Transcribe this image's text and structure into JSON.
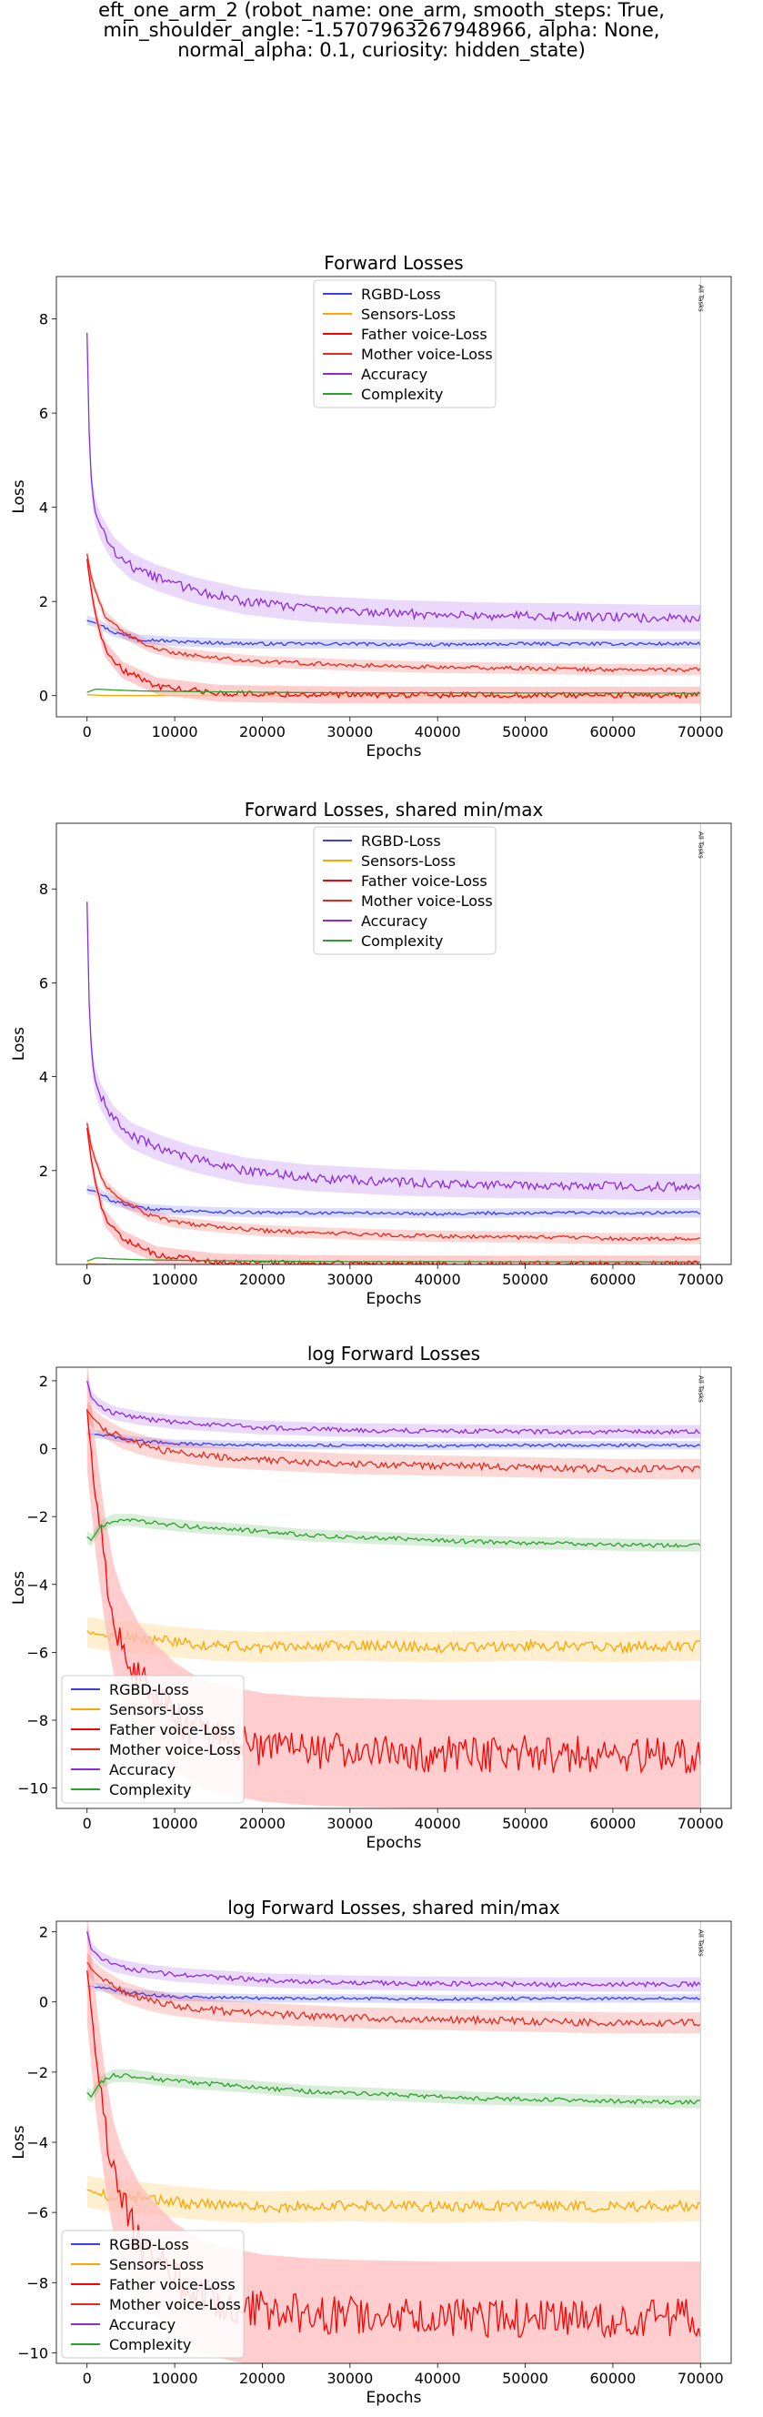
{
  "suptitle": {
    "line1": "eft_one_arm_2 (robot_name: one_arm, smooth_steps: True,",
    "line2": "min_shoulder_angle: -1.5707963267948966, alpha: None,",
    "line3": "normal_alpha: 0.1, curiosity: hidden_state)"
  },
  "colors": {
    "RGBD-Loss": "#3b3bf0",
    "Sensors-Loss": "#ffa500",
    "Father voice-Loss": "#ff0000",
    "Mother voice-Loss": "#e8281e",
    "Accuracy": "#8a2be2",
    "Complexity": "#2ca02c",
    "father_band": "#ffbcbc"
  },
  "chart_data": [
    {
      "type": "line",
      "title": "Forward Losses",
      "xlabel": "Epochs",
      "ylabel": "Loss",
      "xlim": [
        -3500,
        73500
      ],
      "ylim": [
        -0.45,
        8.9
      ],
      "xticks": [
        0,
        10000,
        20000,
        30000,
        40000,
        50000,
        60000,
        70000
      ],
      "yticks": [
        0,
        2,
        4,
        6,
        8
      ],
      "vline": {
        "x": 70000,
        "label": "All Tasks"
      },
      "legend_position": "upper center",
      "series": [
        {
          "name": "RGBD-Loss",
          "x": [
            0,
            1000,
            3000,
            6000,
            10000,
            15000,
            20000,
            30000,
            40000,
            50000,
            60000,
            70000
          ],
          "y": [
            1.6,
            1.55,
            1.35,
            1.2,
            1.15,
            1.12,
            1.1,
            1.1,
            1.08,
            1.1,
            1.1,
            1.1
          ]
        },
        {
          "name": "Sensors-Loss",
          "x": [
            0,
            1000,
            2000,
            5000,
            10000,
            20000,
            30000,
            40000,
            50000,
            60000,
            70000
          ],
          "y": [
            0.02,
            0.01,
            0.005,
            0.003,
            0.003,
            0.003,
            0.003,
            0.003,
            0.003,
            0.003,
            0.003
          ]
        },
        {
          "name": "Father voice-Loss",
          "x": [
            0,
            500,
            1000,
            2000,
            4000,
            8000,
            15000,
            25000,
            35000,
            45000,
            55000,
            65000,
            70000
          ],
          "y": [
            2.9,
            2.2,
            1.7,
            1.0,
            0.55,
            0.2,
            0.05,
            0.02,
            0.01,
            0.01,
            0.01,
            0.01,
            0.01
          ]
        },
        {
          "name": "Mother voice-Loss",
          "x": [
            0,
            500,
            1000,
            2000,
            4000,
            7000,
            10000,
            15000,
            20000,
            30000,
            40000,
            50000,
            60000,
            70000
          ],
          "y": [
            3.0,
            2.5,
            2.2,
            1.7,
            1.35,
            1.05,
            0.9,
            0.8,
            0.72,
            0.65,
            0.6,
            0.58,
            0.55,
            0.55
          ]
        },
        {
          "name": "Accuracy",
          "x": [
            0,
            300,
            800,
            1500,
            3000,
            5000,
            8000,
            12000,
            18000,
            25000,
            35000,
            45000,
            55000,
            65000,
            70000
          ],
          "y": [
            7.7,
            5.0,
            4.0,
            3.6,
            3.1,
            2.75,
            2.5,
            2.25,
            2.0,
            1.85,
            1.75,
            1.7,
            1.68,
            1.65,
            1.65
          ]
        },
        {
          "name": "Complexity",
          "x": [
            0,
            1000,
            3000,
            6000,
            10000,
            20000,
            30000,
            40000,
            50000,
            60000,
            70000
          ],
          "y": [
            0.07,
            0.14,
            0.12,
            0.1,
            0.09,
            0.07,
            0.06,
            0.06,
            0.055,
            0.055,
            0.05
          ]
        }
      ]
    },
    {
      "type": "line",
      "title": "Forward Losses, shared min/max",
      "xlabel": "Epochs",
      "ylabel": "Loss",
      "xlim": [
        -3500,
        73500
      ],
      "ylim": [
        0.0,
        9.4
      ],
      "xticks": [
        0,
        10000,
        20000,
        30000,
        40000,
        50000,
        60000,
        70000
      ],
      "yticks": [
        2,
        4,
        6,
        8
      ],
      "vline": {
        "x": 70000,
        "label": "All Tasks"
      },
      "legend_position": "upper center",
      "series": [
        {
          "name": "RGBD-Loss",
          "x": [
            0,
            1000,
            3000,
            6000,
            10000,
            15000,
            20000,
            30000,
            40000,
            50000,
            60000,
            70000
          ],
          "y": [
            1.6,
            1.55,
            1.35,
            1.2,
            1.15,
            1.12,
            1.1,
            1.1,
            1.08,
            1.1,
            1.1,
            1.1
          ]
        },
        {
          "name": "Sensors-Loss",
          "x": [
            0,
            1000,
            2000,
            5000,
            10000,
            20000,
            30000,
            40000,
            50000,
            60000,
            70000
          ],
          "y": [
            0.02,
            0.01,
            0.005,
            0.003,
            0.003,
            0.003,
            0.003,
            0.003,
            0.003,
            0.003,
            0.003
          ]
        },
        {
          "name": "Father voice-Loss",
          "x": [
            0,
            500,
            1000,
            2000,
            4000,
            8000,
            15000,
            25000,
            35000,
            45000,
            55000,
            65000,
            70000
          ],
          "y": [
            2.9,
            2.2,
            1.7,
            1.0,
            0.55,
            0.2,
            0.05,
            0.02,
            0.01,
            0.01,
            0.01,
            0.01,
            0.01
          ]
        },
        {
          "name": "Mother voice-Loss",
          "x": [
            0,
            500,
            1000,
            2000,
            4000,
            7000,
            10000,
            15000,
            20000,
            30000,
            40000,
            50000,
            60000,
            70000
          ],
          "y": [
            3.0,
            2.5,
            2.2,
            1.7,
            1.35,
            1.05,
            0.9,
            0.8,
            0.72,
            0.65,
            0.6,
            0.58,
            0.55,
            0.55
          ]
        },
        {
          "name": "Accuracy",
          "x": [
            0,
            300,
            800,
            1500,
            3000,
            5000,
            8000,
            12000,
            18000,
            25000,
            35000,
            45000,
            55000,
            65000,
            70000
          ],
          "y": [
            7.7,
            5.0,
            4.0,
            3.6,
            3.1,
            2.75,
            2.5,
            2.25,
            2.0,
            1.85,
            1.75,
            1.7,
            1.68,
            1.65,
            1.65
          ]
        },
        {
          "name": "Complexity",
          "x": [
            0,
            1000,
            3000,
            6000,
            10000,
            20000,
            30000,
            40000,
            50000,
            60000,
            70000
          ],
          "y": [
            0.07,
            0.14,
            0.12,
            0.1,
            0.09,
            0.07,
            0.06,
            0.06,
            0.055,
            0.055,
            0.05
          ]
        }
      ]
    },
    {
      "type": "line",
      "title": "log Forward Losses",
      "xlabel": "Epochs",
      "ylabel": "Loss",
      "xlim": [
        -3500,
        73500
      ],
      "ylim": [
        -10.6,
        2.4
      ],
      "xticks": [
        0,
        10000,
        20000,
        30000,
        40000,
        50000,
        60000,
        70000
      ],
      "yticks": [
        -10,
        -8,
        -6,
        -4,
        -2,
        0,
        2
      ],
      "vline": {
        "x": 70000,
        "label": "All Tasks"
      },
      "legend_position": "lower left",
      "series": [
        {
          "name": "RGBD-Loss",
          "x": [
            0,
            2000,
            5000,
            10000,
            20000,
            30000,
            40000,
            50000,
            60000,
            70000
          ],
          "y": [
            0.45,
            0.4,
            0.25,
            0.15,
            0.1,
            0.1,
            0.08,
            0.1,
            0.1,
            0.1
          ]
        },
        {
          "name": "Sensors-Loss",
          "x": [
            0,
            2000,
            5000,
            10000,
            15000,
            20000,
            30000,
            40000,
            50000,
            60000,
            70000
          ],
          "y": [
            -5.4,
            -5.5,
            -5.55,
            -5.7,
            -5.8,
            -5.85,
            -5.8,
            -5.85,
            -5.8,
            -5.85,
            -5.8
          ]
        },
        {
          "name": "Father voice-Loss",
          "x": [
            0,
            1000,
            2000,
            3000,
            4000,
            6000,
            8000,
            10000,
            13000,
            16000,
            20000,
            25000,
            30000,
            40000,
            50000,
            60000,
            70000
          ],
          "y": [
            1.0,
            -1.5,
            -3.5,
            -5.0,
            -5.8,
            -6.8,
            -7.4,
            -7.9,
            -8.4,
            -8.6,
            -8.8,
            -8.9,
            -8.95,
            -9.0,
            -9.0,
            -9.0,
            -9.0
          ]
        },
        {
          "name": "Mother voice-Loss",
          "x": [
            0,
            1000,
            2000,
            4000,
            7000,
            10000,
            15000,
            20000,
            30000,
            40000,
            50000,
            60000,
            70000
          ],
          "y": [
            1.1,
            0.8,
            0.6,
            0.3,
            0.05,
            -0.1,
            -0.25,
            -0.33,
            -0.45,
            -0.5,
            -0.55,
            -0.6,
            -0.6
          ]
        },
        {
          "name": "Accuracy",
          "x": [
            0,
            500,
            1500,
            3000,
            6000,
            10000,
            15000,
            20000,
            30000,
            40000,
            50000,
            60000,
            70000
          ],
          "y": [
            2.0,
            1.5,
            1.25,
            1.05,
            0.9,
            0.78,
            0.7,
            0.62,
            0.55,
            0.52,
            0.5,
            0.5,
            0.5
          ]
        },
        {
          "name": "Complexity",
          "x": [
            0,
            500,
            1500,
            3000,
            5000,
            8000,
            12000,
            18000,
            25000,
            35000,
            45000,
            55000,
            65000,
            70000
          ],
          "y": [
            -2.6,
            -2.7,
            -2.3,
            -2.1,
            -2.1,
            -2.2,
            -2.3,
            -2.4,
            -2.55,
            -2.65,
            -2.75,
            -2.8,
            -2.85,
            -2.85
          ]
        }
      ]
    },
    {
      "type": "line",
      "title": "log Forward Losses, shared min/max",
      "xlabel": "Epochs",
      "ylabel": "Loss",
      "xlim": [
        -3500,
        73500
      ],
      "ylim": [
        -10.3,
        2.3
      ],
      "xticks": [
        0,
        10000,
        20000,
        30000,
        40000,
        50000,
        60000,
        70000
      ],
      "yticks": [
        -10,
        -8,
        -6,
        -4,
        -2,
        0,
        2
      ],
      "vline": {
        "x": 70000,
        "label": "All Tasks"
      },
      "legend_position": "lower left",
      "series": [
        {
          "name": "RGBD-Loss",
          "x": [
            0,
            2000,
            5000,
            10000,
            20000,
            30000,
            40000,
            50000,
            60000,
            70000
          ],
          "y": [
            0.45,
            0.4,
            0.25,
            0.15,
            0.1,
            0.1,
            0.08,
            0.1,
            0.1,
            0.1
          ]
        },
        {
          "name": "Sensors-Loss",
          "x": [
            0,
            2000,
            5000,
            10000,
            15000,
            20000,
            30000,
            40000,
            50000,
            60000,
            70000
          ],
          "y": [
            -5.4,
            -5.5,
            -5.55,
            -5.7,
            -5.8,
            -5.85,
            -5.8,
            -5.85,
            -5.8,
            -5.85,
            -5.8
          ]
        },
        {
          "name": "Father voice-Loss",
          "x": [
            0,
            1000,
            2000,
            3000,
            4000,
            6000,
            8000,
            10000,
            13000,
            16000,
            20000,
            25000,
            30000,
            40000,
            50000,
            60000,
            70000
          ],
          "y": [
            1.0,
            -1.5,
            -3.5,
            -5.0,
            -5.8,
            -6.8,
            -7.4,
            -7.9,
            -8.4,
            -8.6,
            -8.8,
            -8.9,
            -8.95,
            -9.0,
            -9.0,
            -9.0,
            -9.0
          ]
        },
        {
          "name": "Mother voice-Loss",
          "x": [
            0,
            1000,
            2000,
            4000,
            7000,
            10000,
            15000,
            20000,
            30000,
            40000,
            50000,
            60000,
            70000
          ],
          "y": [
            1.1,
            0.8,
            0.6,
            0.3,
            0.05,
            -0.1,
            -0.25,
            -0.33,
            -0.45,
            -0.5,
            -0.55,
            -0.6,
            -0.6
          ]
        },
        {
          "name": "Accuracy",
          "x": [
            0,
            500,
            1500,
            3000,
            6000,
            10000,
            15000,
            20000,
            30000,
            40000,
            50000,
            60000,
            70000
          ],
          "y": [
            2.0,
            1.5,
            1.25,
            1.05,
            0.9,
            0.78,
            0.7,
            0.62,
            0.55,
            0.52,
            0.5,
            0.5,
            0.5
          ]
        },
        {
          "name": "Complexity",
          "x": [
            0,
            500,
            1500,
            3000,
            5000,
            8000,
            12000,
            18000,
            25000,
            35000,
            45000,
            55000,
            65000,
            70000
          ],
          "y": [
            -2.6,
            -2.7,
            -2.3,
            -2.1,
            -2.1,
            -2.2,
            -2.3,
            -2.4,
            -2.55,
            -2.65,
            -2.75,
            -2.8,
            -2.85,
            -2.85
          ]
        }
      ]
    }
  ]
}
